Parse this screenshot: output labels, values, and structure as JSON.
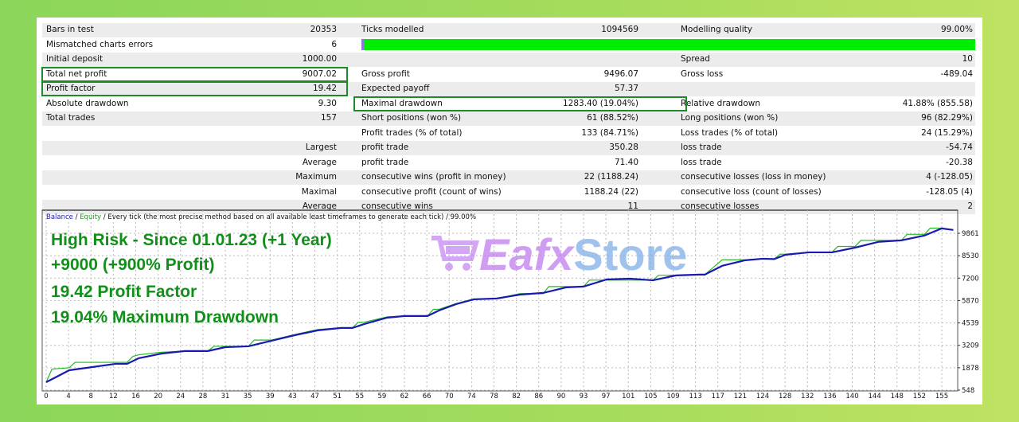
{
  "report": {
    "rows": [
      {
        "l1": "Bars in test",
        "v1": "20353",
        "l2": "Ticks modelled",
        "v2": "1094569",
        "l3": "Modelling quality",
        "v3": "99.00%"
      },
      {
        "l1": "Mismatched charts errors",
        "v1": "6",
        "l2": "",
        "v2": "",
        "l3": "",
        "v3": ""
      },
      {
        "l1": "Initial deposit",
        "v1": "1000.00",
        "l2": "",
        "v2": "",
        "l3": "Spread",
        "v3": "10"
      },
      {
        "l1": "Total net profit",
        "v1": "9007.02",
        "l2": "Gross profit",
        "v2": "9496.07",
        "l3": "Gross loss",
        "v3": "-489.04"
      },
      {
        "l1": "Profit factor",
        "v1": "19.42",
        "l2": "Expected payoff",
        "v2": "57.37",
        "l3": "",
        "v3": ""
      },
      {
        "l1": "Absolute drawdown",
        "v1": "9.30",
        "l2": "Maximal drawdown",
        "v2": "1283.40 (19.04%)",
        "l3": "Relative drawdown",
        "v3": "41.88% (855.58)"
      },
      {
        "l1": "Total trades",
        "v1": "157",
        "l2": "Short positions (won %)",
        "v2": "61 (88.52%)",
        "l3": "Long positions (won %)",
        "v3": "96 (82.29%)"
      },
      {
        "l1": "",
        "v1": "",
        "l2": "Profit trades (% of total)",
        "v2": "133 (84.71%)",
        "l3": "Loss trades (% of total)",
        "v3": "24 (15.29%)"
      },
      {
        "l1": "",
        "v1": "Largest",
        "l2": "profit trade",
        "v2": "350.28",
        "l3": "loss trade",
        "v3": "-54.74"
      },
      {
        "l1": "",
        "v1": "Average",
        "l2": "profit trade",
        "v2": "71.40",
        "l3": "loss trade",
        "v3": "-20.38"
      },
      {
        "l1": "",
        "v1": "Maximum",
        "l2": "consecutive wins (profit in money)",
        "v2": "22 (1188.24)",
        "l3": "consecutive losses (loss in money)",
        "v3": "4 (-128.05)"
      },
      {
        "l1": "",
        "v1": "Maximal",
        "l2": "consecutive profit (count of wins)",
        "v2": "1188.24 (22)",
        "l3": "consecutive loss (count of losses)",
        "v3": "-128.05 (4)"
      },
      {
        "l1": "",
        "v1": "Average",
        "l2": "consecutive wins",
        "v2": "11",
        "l3": "consecutive losses",
        "v3": "2"
      }
    ],
    "modelling_quality_fraction": 0.99,
    "highlight_color": "#1f8a2a"
  },
  "legend": {
    "balance": "Balance",
    "sep1": " / ",
    "equity": "Equity",
    "rest": " / Every tick (the most precise method based on all available least timeframes to generate each tick) / 99.00%"
  },
  "annotations": [
    "High Risk -  Since 01.01.23 (+1 Year)",
    "+9000 (+900% Profit)",
    "19.42 Profit Factor",
    "19.04% Maximum Drawdown"
  ],
  "watermark": {
    "part1": "Eafx",
    "part2": "Store",
    "icon": "shopping-cart-icon"
  },
  "chart_data": {
    "type": "line",
    "x_ticks": [
      "0",
      "4",
      "8",
      "12",
      "16",
      "20",
      "24",
      "28",
      "31",
      "35",
      "39",
      "43",
      "47",
      "51",
      "55",
      "59",
      "62",
      "66",
      "70",
      "74",
      "78",
      "82",
      "86",
      "90",
      "93",
      "97",
      "101",
      "105",
      "109",
      "113",
      "117",
      "121",
      "124",
      "128",
      "132",
      "136",
      "140",
      "144",
      "148",
      "152",
      "155"
    ],
    "y_ticks": [
      "548",
      "1878",
      "3209",
      "4539",
      "5870",
      "7200",
      "8530",
      "9861"
    ],
    "ylim": [
      548,
      10800
    ],
    "xlim": [
      0,
      158
    ],
    "grid": true,
    "colors": {
      "balance": "#1a1ab0",
      "equity": "#22bb22"
    },
    "series": [
      {
        "name": "Balance",
        "x": [
          0,
          4,
          8,
          12,
          14,
          16,
          20,
          24,
          28,
          31,
          35,
          39,
          43,
          47,
          51,
          53,
          55,
          59,
          62,
          66,
          68,
          71,
          74,
          78,
          82,
          86,
          90,
          93,
          97,
          101,
          105,
          109,
          113,
          114,
          117,
          121,
          124,
          126,
          128,
          132,
          136,
          140,
          144,
          148,
          152,
          155,
          157
        ],
        "y": [
          1020,
          1730,
          1920,
          2110,
          2110,
          2440,
          2720,
          2870,
          2870,
          3100,
          3150,
          3480,
          3810,
          4100,
          4240,
          4240,
          4470,
          4850,
          4950,
          4950,
          5280,
          5660,
          5940,
          5990,
          6220,
          6320,
          6650,
          6700,
          7120,
          7170,
          7070,
          7360,
          7410,
          7410,
          7930,
          8260,
          8350,
          8330,
          8590,
          8730,
          8730,
          9010,
          9350,
          9440,
          9730,
          10150,
          10060
        ]
      },
      {
        "name": "Equity",
        "x": [
          0,
          1,
          4,
          5,
          8,
          12,
          14,
          15,
          16,
          20,
          24,
          28,
          29,
          31,
          35,
          36,
          39,
          43,
          47,
          51,
          53,
          54,
          55,
          59,
          62,
          66,
          67,
          68,
          71,
          74,
          78,
          82,
          86,
          87,
          90,
          93,
          94,
          97,
          101,
          105,
          106,
          109,
          113,
          114,
          115,
          117,
          121,
          124,
          126,
          127,
          128,
          132,
          136,
          137,
          140,
          141,
          144,
          148,
          149,
          152,
          153,
          155,
          157
        ],
        "y": [
          1020,
          1800,
          1880,
          2200,
          2200,
          2200,
          2200,
          2550,
          2650,
          2800,
          2870,
          2870,
          3150,
          3150,
          3150,
          3520,
          3520,
          3850,
          4150,
          4250,
          4250,
          4580,
          4580,
          4900,
          4950,
          4950,
          5350,
          5350,
          5700,
          5960,
          5990,
          6280,
          6280,
          6700,
          6700,
          6700,
          7080,
          7080,
          7080,
          7080,
          7370,
          7370,
          7410,
          7410,
          7700,
          8290,
          8290,
          8350,
          8330,
          8620,
          8620,
          8730,
          8730,
          9080,
          9080,
          9440,
          9440,
          9440,
          9800,
          9800,
          10170,
          10170,
          10060
        ]
      }
    ]
  }
}
